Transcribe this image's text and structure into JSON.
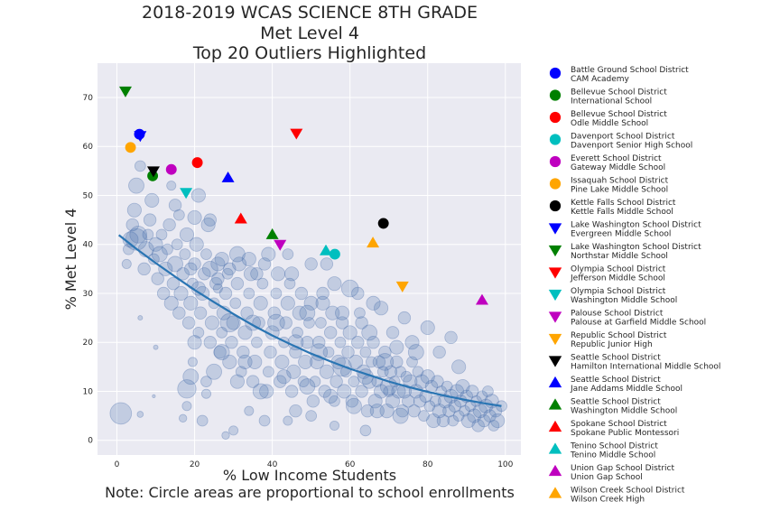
{
  "chart_data": {
    "type": "scatter",
    "title_lines": [
      "2018-2019 WCAS SCIENCE 8TH GRADE",
      "Met Level 4",
      "Top 20 Outliers Highlighted"
    ],
    "xlabel": "% Low Income Students",
    "note": "Note: Circle areas are proportional to school enrollments",
    "ylabel": "% Met Level 4",
    "xlim": [
      -5,
      104
    ],
    "ylim": [
      -3,
      77
    ],
    "x_ticks": [
      0,
      20,
      40,
      60,
      80,
      100
    ],
    "y_ticks": [
      0,
      10,
      20,
      30,
      40,
      50,
      60,
      70
    ],
    "grid": true,
    "legend_position": "right",
    "background_points": [
      [
        1,
        5.5,
        14
      ],
      [
        5,
        41,
        14
      ],
      [
        6,
        25,
        3
      ],
      [
        6,
        5.3,
        4
      ],
      [
        9.5,
        9,
        2
      ],
      [
        10,
        19,
        3
      ],
      [
        14,
        52,
        6
      ],
      [
        15,
        48,
        8
      ],
      [
        16,
        46,
        7
      ],
      [
        17,
        4.5,
        5
      ],
      [
        18,
        7,
        6
      ],
      [
        18,
        10.5,
        12
      ],
      [
        19,
        13,
        10
      ],
      [
        19.5,
        16,
        6
      ],
      [
        20,
        45.5,
        9
      ],
      [
        21,
        50,
        9
      ],
      [
        23,
        12,
        7
      ],
      [
        23,
        9.5,
        6
      ],
      [
        24,
        45,
        8
      ],
      [
        26,
        31,
        6
      ],
      [
        2.5,
        36,
        6
      ],
      [
        3,
        39,
        7
      ],
      [
        3.5,
        41,
        10
      ],
      [
        4,
        44,
        8
      ],
      [
        4.5,
        47,
        9
      ],
      [
        5,
        52,
        10
      ],
      [
        6,
        56,
        7
      ],
      [
        5.5,
        42,
        11
      ],
      [
        7,
        35,
        8
      ],
      [
        7.5,
        39,
        10
      ],
      [
        8,
        42,
        7
      ],
      [
        8.5,
        45,
        8
      ],
      [
        9,
        49,
        9
      ],
      [
        9.5,
        37,
        7
      ],
      [
        10,
        40,
        9
      ],
      [
        10.5,
        33,
        8
      ],
      [
        11,
        38,
        10
      ],
      [
        11.5,
        42,
        7
      ],
      [
        12,
        30,
        8
      ],
      [
        12.5,
        35,
        9
      ],
      [
        13,
        39,
        7
      ],
      [
        13.5,
        44,
        8
      ],
      [
        14,
        28,
        9
      ],
      [
        14.5,
        32,
        8
      ],
      [
        15,
        36,
        10
      ],
      [
        15.5,
        40,
        7
      ],
      [
        16,
        26,
        8
      ],
      [
        16.5,
        30,
        9
      ],
      [
        17,
        34,
        8
      ],
      [
        17.5,
        38,
        7
      ],
      [
        18,
        42,
        9
      ],
      [
        18.5,
        24,
        8
      ],
      [
        19,
        28,
        9
      ],
      [
        19.5,
        32,
        7
      ],
      [
        20,
        36,
        8
      ],
      [
        20.5,
        40,
        9
      ],
      [
        21,
        22,
        7
      ],
      [
        21.5,
        26,
        8
      ],
      [
        22,
        30,
        9
      ],
      [
        22.5,
        34,
        8
      ],
      [
        23,
        38,
        7
      ],
      [
        23.5,
        44,
        9
      ],
      [
        24,
        20,
        8
      ],
      [
        24.5,
        24,
        9
      ],
      [
        25,
        28,
        7
      ],
      [
        25.5,
        32,
        8
      ],
      [
        26,
        36,
        9
      ],
      [
        26.5,
        18,
        8
      ],
      [
        27,
        22,
        7
      ],
      [
        27.5,
        26,
        9
      ],
      [
        28,
        30,
        8
      ],
      [
        28.5,
        34,
        7
      ],
      [
        29,
        16,
        9
      ],
      [
        29.5,
        20,
        8
      ],
      [
        30,
        24,
        9
      ],
      [
        30.5,
        28,
        7
      ],
      [
        31,
        32,
        8
      ],
      [
        31.5,
        36,
        9
      ],
      [
        32,
        14,
        7
      ],
      [
        32.5,
        18,
        8
      ],
      [
        33,
        22,
        9
      ],
      [
        33.5,
        26,
        8
      ],
      [
        34,
        30,
        7
      ],
      [
        34.5,
        34,
        9
      ],
      [
        35,
        12,
        8
      ],
      [
        35.5,
        16,
        9
      ],
      [
        36,
        20,
        7
      ],
      [
        36.5,
        24,
        8
      ],
      [
        37,
        28,
        9
      ],
      [
        37.5,
        32,
        7
      ],
      [
        38,
        36,
        8
      ],
      [
        38.5,
        10,
        9
      ],
      [
        39,
        14,
        7
      ],
      [
        39.5,
        18,
        8
      ],
      [
        40,
        22,
        9
      ],
      [
        40.5,
        26,
        8
      ],
      [
        41,
        30,
        7
      ],
      [
        41.5,
        34,
        9
      ],
      [
        42,
        12,
        8
      ],
      [
        42.5,
        16,
        9
      ],
      [
        43,
        20,
        7
      ],
      [
        43.5,
        24,
        8
      ],
      [
        44,
        28,
        9
      ],
      [
        44.5,
        32,
        7
      ],
      [
        45,
        10,
        8
      ],
      [
        45.5,
        14,
        9
      ],
      [
        46,
        18,
        8
      ],
      [
        46.5,
        22,
        7
      ],
      [
        47,
        26,
        9
      ],
      [
        47.5,
        30,
        8
      ],
      [
        48,
        12,
        7
      ],
      [
        48.5,
        16,
        9
      ],
      [
        49,
        20,
        8
      ],
      [
        49.5,
        24,
        7
      ],
      [
        50,
        28,
        9
      ],
      [
        50.5,
        8,
        8
      ],
      [
        51,
        12,
        7
      ],
      [
        51.5,
        16,
        9
      ],
      [
        52,
        20,
        8
      ],
      [
        52.5,
        24,
        7
      ],
      [
        53,
        28,
        9
      ],
      [
        53.5,
        10,
        8
      ],
      [
        54,
        14,
        9
      ],
      [
        54.5,
        18,
        7
      ],
      [
        55,
        22,
        8
      ],
      [
        55.5,
        26,
        9
      ],
      [
        56,
        8,
        7
      ],
      [
        56.5,
        12,
        8
      ],
      [
        57,
        16,
        9
      ],
      [
        57.5,
        20,
        7
      ],
      [
        58,
        24,
        8
      ],
      [
        58.5,
        10,
        9
      ],
      [
        59,
        14,
        7
      ],
      [
        59.5,
        18,
        8
      ],
      [
        60,
        22,
        9
      ],
      [
        60.5,
        8,
        8
      ],
      [
        61,
        12,
        7
      ],
      [
        61.5,
        16,
        9
      ],
      [
        62,
        20,
        8
      ],
      [
        62.5,
        26,
        7
      ],
      [
        63,
        10,
        8
      ],
      [
        63.5,
        14,
        9
      ],
      [
        64,
        18,
        7
      ],
      [
        64.5,
        6,
        8
      ],
      [
        65,
        12,
        9
      ],
      [
        65.5,
        16,
        7
      ],
      [
        66,
        20,
        8
      ],
      [
        66.5,
        8,
        9
      ],
      [
        67,
        12,
        7
      ],
      [
        67.5,
        16,
        8
      ],
      [
        68,
        10,
        9
      ],
      [
        68.5,
        14,
        7
      ],
      [
        69,
        18,
        8
      ],
      [
        69.5,
        6,
        9
      ],
      [
        70,
        10,
        7
      ],
      [
        70.5,
        14,
        8
      ],
      [
        71,
        8,
        9
      ],
      [
        71.5,
        12,
        7
      ],
      [
        72,
        16,
        8
      ],
      [
        72.5,
        10,
        9
      ],
      [
        73,
        14,
        7
      ],
      [
        73.5,
        6,
        8
      ],
      [
        74,
        10,
        9
      ],
      [
        74.5,
        13,
        7
      ],
      [
        75,
        8,
        8
      ],
      [
        75.5,
        12,
        9
      ],
      [
        76,
        16,
        7
      ],
      [
        76.5,
        6,
        8
      ],
      [
        77,
        10,
        9
      ],
      [
        77.5,
        14,
        7
      ],
      [
        78,
        8,
        8
      ],
      [
        78.5,
        12,
        9
      ],
      [
        79,
        5,
        7
      ],
      [
        79.5,
        9,
        8
      ],
      [
        80,
        13,
        9
      ],
      [
        80.5,
        7,
        7
      ],
      [
        81,
        11,
        8
      ],
      [
        81.5,
        4,
        9
      ],
      [
        82,
        8,
        7
      ],
      [
        82.5,
        12,
        8
      ],
      [
        83,
        6,
        9
      ],
      [
        83.5,
        10,
        7
      ],
      [
        84,
        4,
        8
      ],
      [
        84.5,
        8,
        9
      ],
      [
        85,
        11,
        7
      ],
      [
        85.5,
        6,
        8
      ],
      [
        86,
        9,
        9
      ],
      [
        86.5,
        4,
        7
      ],
      [
        87,
        7,
        8
      ],
      [
        87.5,
        10,
        9
      ],
      [
        88,
        5,
        7
      ],
      [
        88.5,
        8,
        8
      ],
      [
        89,
        11,
        9
      ],
      [
        89.5,
        6,
        7
      ],
      [
        90,
        9,
        8
      ],
      [
        90.5,
        4,
        9
      ],
      [
        91,
        7,
        7
      ],
      [
        91.5,
        10,
        8
      ],
      [
        92,
        5,
        9
      ],
      [
        92.5,
        8,
        7
      ],
      [
        93,
        3,
        8
      ],
      [
        93.5,
        6,
        9
      ],
      [
        94,
        9,
        7
      ],
      [
        94.5,
        4,
        8
      ],
      [
        95,
        7,
        9
      ],
      [
        95.5,
        10,
        7
      ],
      [
        96,
        5,
        8
      ],
      [
        96.5,
        8,
        9
      ],
      [
        97,
        3,
        7
      ],
      [
        97.5,
        6,
        8
      ],
      [
        98,
        4,
        9
      ],
      [
        99,
        7,
        7
      ],
      [
        27,
        37,
        9
      ],
      [
        29,
        35,
        8
      ],
      [
        31,
        38,
        10
      ],
      [
        34,
        37,
        9
      ],
      [
        36,
        34,
        8
      ],
      [
        39,
        38,
        9
      ],
      [
        24,
        35,
        10
      ],
      [
        26,
        33,
        8
      ],
      [
        21,
        31,
        9
      ],
      [
        19,
        35,
        8
      ],
      [
        29,
        24,
        12
      ],
      [
        35,
        24,
        10
      ],
      [
        41,
        24,
        11
      ],
      [
        46,
        20,
        10
      ],
      [
        52,
        18,
        11
      ],
      [
        58,
        15,
        12
      ],
      [
        64,
        13,
        10
      ],
      [
        70,
        11,
        11
      ],
      [
        25,
        14,
        10
      ],
      [
        31,
        12,
        9
      ],
      [
        37,
        10,
        10
      ],
      [
        43,
        13,
        9
      ],
      [
        49,
        11,
        10
      ],
      [
        55,
        9,
        9
      ],
      [
        61,
        7,
        10
      ],
      [
        67,
        6,
        9
      ],
      [
        73,
        5,
        10
      ],
      [
        20,
        20,
        9
      ],
      [
        27,
        18,
        10
      ],
      [
        33,
        16,
        9
      ],
      [
        45,
        34,
        9
      ],
      [
        50,
        36,
        8
      ],
      [
        56,
        32,
        9
      ],
      [
        62,
        30,
        8
      ],
      [
        68,
        27,
        9
      ],
      [
        74,
        25,
        8
      ],
      [
        80,
        23,
        9
      ],
      [
        86,
        21,
        8
      ],
      [
        49,
        26,
        10
      ],
      [
        53,
        30,
        8
      ],
      [
        58,
        26,
        9
      ],
      [
        63,
        24,
        8
      ],
      [
        66,
        28,
        9
      ],
      [
        71,
        22,
        8
      ],
      [
        76,
        20,
        9
      ],
      [
        83,
        18,
        8
      ],
      [
        88,
        15,
        9
      ],
      [
        60,
        31,
        11
      ],
      [
        65,
        22,
        10
      ],
      [
        69,
        16,
        11
      ],
      [
        72,
        19,
        9
      ],
      [
        77,
        18,
        10
      ],
      [
        54,
        36,
        8
      ],
      [
        44,
        38,
        7
      ],
      [
        46,
        6,
        8
      ],
      [
        38,
        4,
        7
      ],
      [
        56,
        3,
        6
      ],
      [
        64,
        2,
        7
      ],
      [
        30,
        2,
        6
      ],
      [
        22,
        4,
        7
      ],
      [
        34,
        6,
        6
      ],
      [
        50,
        5,
        7
      ],
      [
        44,
        4,
        6
      ],
      [
        28,
        1,
        5
      ]
    ],
    "trend_line": [
      [
        0.5,
        41.9
      ],
      [
        5,
        39.1
      ],
      [
        10,
        36.2
      ],
      [
        15,
        33.4
      ],
      [
        20,
        30.7
      ],
      [
        25,
        28.2
      ],
      [
        30,
        25.8
      ],
      [
        35,
        23.5
      ],
      [
        40,
        21.4
      ],
      [
        45,
        19.5
      ],
      [
        50,
        17.7
      ],
      [
        55,
        16.1
      ],
      [
        60,
        14.6
      ],
      [
        65,
        13.3
      ],
      [
        70,
        12.0
      ],
      [
        75,
        10.9
      ],
      [
        80,
        9.9
      ],
      [
        85,
        9.0
      ],
      [
        90,
        8.2
      ],
      [
        95,
        7.5
      ],
      [
        99,
        7.0
      ]
    ],
    "series": [
      {
        "name": "Battle Ground School District\nCAM Academy",
        "marker": "circle",
        "color": "#0000ff",
        "x": 5.8,
        "y": 62.5
      },
      {
        "name": "Bellevue School District\nInternational School",
        "marker": "circle",
        "color": "#008000",
        "x": 9.2,
        "y": 54.0
      },
      {
        "name": "Bellevue School District\nOdle Middle School",
        "marker": "circle",
        "color": "#ff0000",
        "x": 20.7,
        "y": 56.7
      },
      {
        "name": "Davenport School District\nDavenport Senior High School",
        "marker": "circle",
        "color": "#00bfbf",
        "x": 56.1,
        "y": 38.0
      },
      {
        "name": "Everett School District\nGateway Middle School",
        "marker": "circle",
        "color": "#bf00bf",
        "x": 14.0,
        "y": 55.3
      },
      {
        "name": "Issaquah School District\nPine Lake Middle School",
        "marker": "circle",
        "color": "#ffa500",
        "x": 3.5,
        "y": 59.8
      },
      {
        "name": "Kettle Falls School District\nKettle Falls Middle School",
        "marker": "circle",
        "color": "#000000",
        "x": 68.6,
        "y": 44.3
      },
      {
        "name": "Lake Washington School District\nEvergreen Middle School",
        "marker": "triangle-down",
        "color": "#0000ff",
        "x": 6.0,
        "y": 62.2
      },
      {
        "name": "Lake Washington School District\nNorthstar Middle School",
        "marker": "triangle-down",
        "color": "#008000",
        "x": 2.2,
        "y": 71.3
      },
      {
        "name": "Olympia School District\nJefferson Middle School",
        "marker": "triangle-down",
        "color": "#ff0000",
        "x": 46.2,
        "y": 62.7
      },
      {
        "name": "Olympia School District\nWashington Middle School",
        "marker": "triangle-down",
        "color": "#00bfbf",
        "x": 17.8,
        "y": 50.6
      },
      {
        "name": "Palouse School District\nPalouse at Garfield Middle School",
        "marker": "triangle-down",
        "color": "#bf00bf",
        "x": 42.0,
        "y": 40.0
      },
      {
        "name": "Republic School District\nRepublic Junior High",
        "marker": "triangle-down",
        "color": "#ffa500",
        "x": 73.5,
        "y": 31.5
      },
      {
        "name": "Seattle School District\nHamilton International Middle School",
        "marker": "triangle-down",
        "color": "#000000",
        "x": 9.4,
        "y": 55.0
      },
      {
        "name": "Seattle School District\nJane Addams Middle School",
        "marker": "triangle-up",
        "color": "#0000ff",
        "x": 28.6,
        "y": 53.6
      },
      {
        "name": "Seattle School District\nWashington Middle School",
        "marker": "triangle-up",
        "color": "#008000",
        "x": 40.0,
        "y": 42.0
      },
      {
        "name": "Spokane School District\nSpokane Public Montessori",
        "marker": "triangle-up",
        "color": "#ff0000",
        "x": 31.9,
        "y": 45.2
      },
      {
        "name": "Tenino School District\nTenino Middle School",
        "marker": "triangle-up",
        "color": "#00bfbf",
        "x": 53.8,
        "y": 38.7
      },
      {
        "name": "Union Gap School District\nUnion Gap School",
        "marker": "triangle-up",
        "color": "#bf00bf",
        "x": 94.0,
        "y": 28.6
      },
      {
        "name": "Wilson Creek School District\nWilson Creek High",
        "marker": "triangle-up",
        "color": "#ffa500",
        "x": 65.9,
        "y": 40.3
      }
    ]
  }
}
